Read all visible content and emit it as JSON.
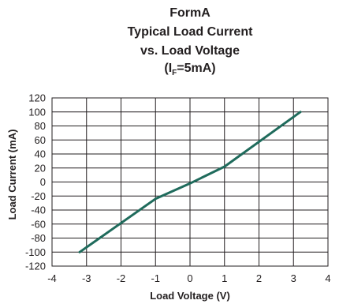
{
  "chart_data": {
    "type": "line",
    "title_lines": [
      "FormA",
      "Typical Load Current",
      "vs. Load Voltage"
    ],
    "subtitle": {
      "prefix": "(I",
      "subscript": "F",
      "suffix": "=5mA)"
    },
    "xlabel": "Load Voltage (V)",
    "ylabel": "Load Current (mA)",
    "xlim": [
      -4,
      4
    ],
    "ylim": [
      -120,
      120
    ],
    "x_ticks": [
      -4,
      -3,
      -2,
      -1,
      0,
      1,
      2,
      3,
      4
    ],
    "y_ticks": [
      120,
      100,
      80,
      60,
      40,
      20,
      0,
      -20,
      -40,
      -60,
      -80,
      -100,
      -120
    ],
    "grid": true,
    "series": [
      {
        "color": "#1f6b5c",
        "x": [
          -3.2,
          -1.0,
          0.0,
          1.0,
          3.2
        ],
        "y": [
          -100,
          -24,
          -2,
          22,
          100
        ]
      }
    ]
  }
}
